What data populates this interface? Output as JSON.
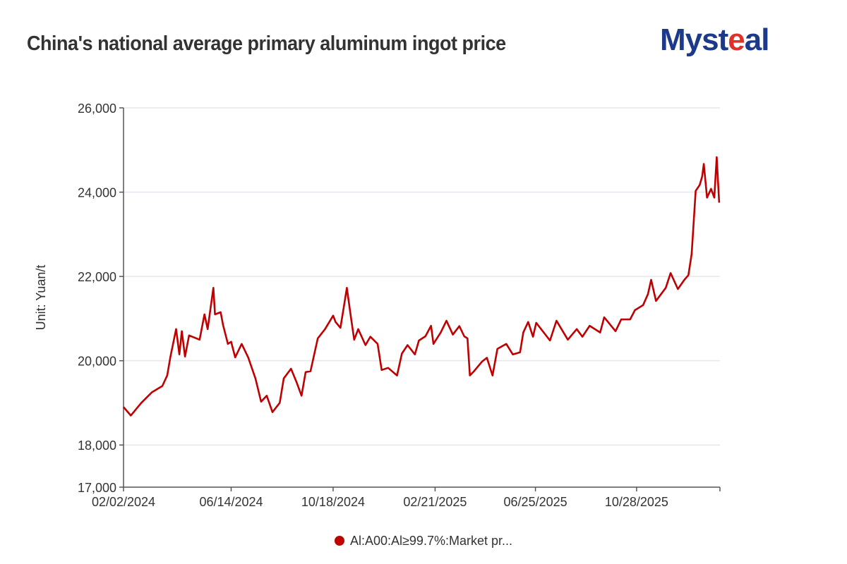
{
  "chart_data": {
    "type": "line",
    "title": "China's national average primary aluminum ingot price",
    "ylabel": "Unit: Yuan/t",
    "xlabel": "",
    "ylim": [
      17000,
      26000
    ],
    "xlim": [
      "2024-02-02",
      "2026-02-08"
    ],
    "yticks": [
      17000,
      18000,
      20000,
      22000,
      24000,
      26000
    ],
    "ytick_labels": [
      "17,000",
      "18,000",
      "20,000",
      "22,000",
      "24,000",
      "26,000"
    ],
    "xticks": [
      "2024-02-02",
      "2024-06-14",
      "2024-10-18",
      "2025-02-21",
      "2025-06-25",
      "2025-10-28"
    ],
    "xtick_labels": [
      "02/02/2024",
      "06/14/2024",
      "10/18/2024",
      "02/21/2025",
      "06/25/2025",
      "10/28/2025"
    ],
    "grid": true,
    "legend_position": "bottom",
    "series": [
      {
        "name": "Al:A00:Al≥99.7%:Market pr...",
        "color": "#c00000",
        "points": [
          [
            "2024-02-02",
            18900
          ],
          [
            "2024-02-11",
            18700
          ],
          [
            "2024-02-24",
            19000
          ],
          [
            "2024-03-08",
            19250
          ],
          [
            "2024-03-21",
            19400
          ],
          [
            "2024-03-27",
            19650
          ],
          [
            "2024-03-31",
            20100
          ],
          [
            "2024-04-07",
            20750
          ],
          [
            "2024-04-11",
            20150
          ],
          [
            "2024-04-14",
            20700
          ],
          [
            "2024-04-18",
            20100
          ],
          [
            "2024-04-23",
            20600
          ],
          [
            "2024-05-06",
            20500
          ],
          [
            "2024-05-12",
            21100
          ],
          [
            "2024-05-16",
            20750
          ],
          [
            "2024-05-23",
            21730
          ],
          [
            "2024-05-25",
            21100
          ],
          [
            "2024-06-01",
            21150
          ],
          [
            "2024-06-04",
            20850
          ],
          [
            "2024-06-10",
            20400
          ],
          [
            "2024-06-14",
            20450
          ],
          [
            "2024-06-19",
            20080
          ],
          [
            "2024-06-27",
            20400
          ],
          [
            "2024-07-05",
            20080
          ],
          [
            "2024-07-14",
            19580
          ],
          [
            "2024-07-21",
            19030
          ],
          [
            "2024-07-28",
            19170
          ],
          [
            "2024-08-04",
            18780
          ],
          [
            "2024-08-13",
            19000
          ],
          [
            "2024-08-18",
            19580
          ],
          [
            "2024-08-27",
            19810
          ],
          [
            "2024-09-03",
            19480
          ],
          [
            "2024-09-09",
            19170
          ],
          [
            "2024-09-14",
            19730
          ],
          [
            "2024-09-20",
            19750
          ],
          [
            "2024-09-29",
            20530
          ],
          [
            "2024-10-08",
            20750
          ],
          [
            "2024-10-18",
            21070
          ],
          [
            "2024-10-21",
            20920
          ],
          [
            "2024-10-27",
            20780
          ],
          [
            "2024-11-01",
            21370
          ],
          [
            "2024-11-04",
            21730
          ],
          [
            "2024-11-09",
            21030
          ],
          [
            "2024-11-13",
            20500
          ],
          [
            "2024-11-18",
            20750
          ],
          [
            "2024-11-27",
            20370
          ],
          [
            "2024-12-03",
            20570
          ],
          [
            "2024-12-12",
            20400
          ],
          [
            "2024-12-17",
            19780
          ],
          [
            "2024-12-25",
            19830
          ],
          [
            "2025-01-05",
            19650
          ],
          [
            "2025-01-11",
            20170
          ],
          [
            "2025-01-18",
            20370
          ],
          [
            "2025-01-27",
            20150
          ],
          [
            "2025-02-01",
            20480
          ],
          [
            "2025-02-09",
            20580
          ],
          [
            "2025-02-16",
            20830
          ],
          [
            "2025-02-19",
            20400
          ],
          [
            "2025-02-28",
            20670
          ],
          [
            "2025-03-07",
            20950
          ],
          [
            "2025-03-15",
            20620
          ],
          [
            "2025-03-23",
            20820
          ],
          [
            "2025-03-29",
            20580
          ],
          [
            "2025-04-02",
            20530
          ],
          [
            "2025-04-05",
            19650
          ],
          [
            "2025-04-10",
            19750
          ],
          [
            "2025-04-20",
            19980
          ],
          [
            "2025-04-26",
            20070
          ],
          [
            "2025-05-03",
            19650
          ],
          [
            "2025-05-09",
            20280
          ],
          [
            "2025-05-20",
            20400
          ],
          [
            "2025-05-28",
            20150
          ],
          [
            "2025-06-06",
            20200
          ],
          [
            "2025-06-10",
            20670
          ],
          [
            "2025-06-16",
            20920
          ],
          [
            "2025-06-22",
            20570
          ],
          [
            "2025-06-26",
            20900
          ],
          [
            "2025-07-13",
            20480
          ],
          [
            "2025-07-21",
            20950
          ],
          [
            "2025-08-04",
            20500
          ],
          [
            "2025-08-15",
            20750
          ],
          [
            "2025-08-22",
            20570
          ],
          [
            "2025-08-31",
            20830
          ],
          [
            "2025-09-13",
            20670
          ],
          [
            "2025-09-18",
            21030
          ],
          [
            "2025-10-02",
            20700
          ],
          [
            "2025-10-09",
            20980
          ],
          [
            "2025-10-20",
            20980
          ],
          [
            "2025-10-26",
            21200
          ],
          [
            "2025-11-05",
            21320
          ],
          [
            "2025-11-11",
            21580
          ],
          [
            "2025-11-15",
            21920
          ],
          [
            "2025-11-21",
            21420
          ],
          [
            "2025-12-03",
            21730
          ],
          [
            "2025-12-09",
            22080
          ],
          [
            "2025-12-18",
            21700
          ],
          [
            "2025-12-26",
            21920
          ],
          [
            "2025-12-31",
            22030
          ],
          [
            "2026-01-04",
            22530
          ],
          [
            "2026-01-09",
            24030
          ],
          [
            "2026-01-14",
            24170
          ],
          [
            "2026-01-17",
            24370
          ],
          [
            "2026-01-19",
            24670
          ],
          [
            "2026-01-23",
            23870
          ],
          [
            "2026-01-28",
            24080
          ],
          [
            "2026-02-01",
            23870
          ],
          [
            "2026-02-04",
            24830
          ],
          [
            "2026-02-07",
            23750
          ]
        ]
      }
    ]
  },
  "logo": {
    "text_before": "Myst",
    "text_accent": "e",
    "text_after": "al"
  },
  "colors": {
    "series": "#c00000",
    "grid": "#e6e6ee",
    "axis": "#555555",
    "logo_blue": "#1d3a8a",
    "logo_red": "#e0322b"
  }
}
